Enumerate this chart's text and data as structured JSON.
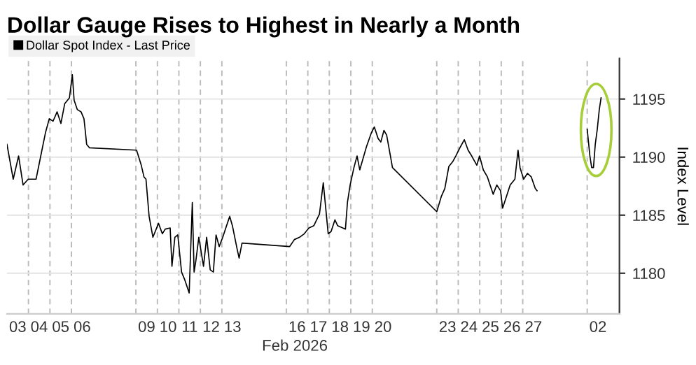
{
  "chart_data": {
    "type": "line",
    "title": "Dollar Gauge Rises to Highest in Nearly a Month",
    "xlabel": "Feb 2026",
    "ylabel": "Index Level",
    "xlim": [
      "2026-02-03T00:00",
      "2026-03-03T12:00"
    ],
    "ylim": [
      1176.5,
      1198.5
    ],
    "yticks": [
      1180,
      1185,
      1190,
      1195
    ],
    "xticks": [
      {
        "value": "2026-02-03T12:00",
        "label": "03"
      },
      {
        "value": "2026-02-04T12:00",
        "label": "04"
      },
      {
        "value": "2026-02-05T12:00",
        "label": "05"
      },
      {
        "value": "2026-02-06T12:00",
        "label": "06"
      },
      {
        "value": "2026-02-09T12:00",
        "label": "09"
      },
      {
        "value": "2026-02-10T12:00",
        "label": "10"
      },
      {
        "value": "2026-02-11T12:00",
        "label": "11"
      },
      {
        "value": "2026-02-12T12:00",
        "label": "12"
      },
      {
        "value": "2026-02-13T12:00",
        "label": "13"
      },
      {
        "value": "2026-02-16T12:00",
        "label": "16"
      },
      {
        "value": "2026-02-17T12:00",
        "label": "17"
      },
      {
        "value": "2026-02-18T12:00",
        "label": "18"
      },
      {
        "value": "2026-02-19T12:00",
        "label": "19"
      },
      {
        "value": "2026-02-20T12:00",
        "label": "20"
      },
      {
        "value": "2026-02-23T12:00",
        "label": "23"
      },
      {
        "value": "2026-02-24T12:00",
        "label": "24"
      },
      {
        "value": "2026-02-25T12:00",
        "label": "25"
      },
      {
        "value": "2026-02-26T12:00",
        "label": "26"
      },
      {
        "value": "2026-02-27T12:00",
        "label": "27"
      },
      {
        "value": "2026-03-02T12:00",
        "label": "02"
      },
      {
        "value": "2026-02-04T00:00",
        "label": null
      },
      {
        "value": "2026-02-05T00:00",
        "label": null
      },
      {
        "value": "2026-02-06T00:00",
        "label": null
      },
      {
        "value": "2026-02-09T00:00",
        "label": null
      },
      {
        "value": "2026-02-10T00:00",
        "label": null
      },
      {
        "value": "2026-02-11T00:00",
        "label": null
      },
      {
        "value": "2026-02-12T00:00",
        "label": null
      },
      {
        "value": "2026-02-13T00:00",
        "label": null
      },
      {
        "value": "2026-02-16T00:00",
        "label": null
      },
      {
        "value": "2026-02-17T00:00",
        "label": null
      },
      {
        "value": "2026-02-18T00:00",
        "label": null
      },
      {
        "value": "2026-02-19T00:00",
        "label": null
      },
      {
        "value": "2026-02-20T00:00",
        "label": null
      },
      {
        "value": "2026-02-23T00:00",
        "label": null
      },
      {
        "value": "2026-02-24T00:00",
        "label": null
      },
      {
        "value": "2026-02-25T00:00",
        "label": null
      },
      {
        "value": "2026-02-26T00:00",
        "label": null
      },
      {
        "value": "2026-02-27T00:00",
        "label": null
      },
      {
        "value": "2026-03-02T00:00",
        "label": null
      }
    ],
    "grid": true,
    "legend": "top left",
    "series": [
      {
        "name": "Dollar Spot Index - Last Price",
        "color": "#000000",
        "x": [
          "2026-02-03T00:00",
          "2026-02-03T07:00",
          "2026-02-03T13:00",
          "2026-02-03T18:00",
          "2026-02-03T23:45",
          "2026-02-04T08:30",
          "2026-02-04T13:45",
          "2026-02-04T19:00",
          "2026-02-04T23:15",
          "2026-02-05T03:30",
          "2026-02-05T08:00",
          "2026-02-05T12:15",
          "2026-02-05T16:30",
          "2026-02-05T21:45",
          "2026-02-06T01:00",
          "2026-02-06T03:00",
          "2026-02-06T06:30",
          "2026-02-06T10:45",
          "2026-02-06T14:00",
          "2026-02-06T15:00",
          "2026-02-06T17:00",
          "2026-02-06T20:15",
          "2026-02-09T00:45",
          "2026-02-09T06:00",
          "2026-02-09T09:00",
          "2026-02-09T11:15",
          "2026-02-09T14:45",
          "2026-02-09T19:00",
          "2026-02-10T01:15",
          "2026-02-10T05:30",
          "2026-02-10T08:45",
          "2026-02-10T14:15",
          "2026-02-10T16:15",
          "2026-02-10T19:30",
          "2026-02-10T22:45",
          "2026-02-11T03:00",
          "2026-02-11T06:15",
          "2026-02-11T11:30",
          "2026-02-11T15:00",
          "2026-02-11T17:00",
          "2026-02-11T19:00",
          "2026-02-11T22:15",
          "2026-02-12T03:30",
          "2026-02-12T07:00",
          "2026-02-12T11:00",
          "2026-02-12T14:30",
          "2026-02-12T17:30",
          "2026-02-12T21:00",
          "2026-02-13T01:00",
          "2026-02-13T05:15",
          "2026-02-13T08:45",
          "2026-02-13T11:45",
          "2026-02-13T17:00",
          "2026-02-13T19:15",
          "2026-02-13T22:30",
          "2026-02-16T03:45",
          "2026-02-16T09:00",
          "2026-02-16T14:45",
          "2026-02-16T20:00",
          "2026-02-17T01:15",
          "2026-02-17T06:45",
          "2026-02-17T13:00",
          "2026-02-17T17:15",
          "2026-02-17T22:45",
          "2026-02-18T02:00",
          "2026-02-18T06:15",
          "2026-02-18T09:15",
          "2026-02-18T15:00",
          "2026-02-18T18:00",
          "2026-02-18T20:15",
          "2026-02-18T23:15",
          "2026-02-19T03:30",
          "2026-02-19T07:00",
          "2026-02-19T10:00",
          "2026-02-19T14:30",
          "2026-02-19T17:30",
          "2026-02-19T23:00",
          "2026-02-20T02:15",
          "2026-02-20T06:30",
          "2026-02-20T09:30",
          "2026-02-20T13:00",
          "2026-02-20T16:00",
          "2026-02-20T20:15",
          "2026-02-20T22:30",
          "2026-02-23T00:00",
          "2026-02-23T05:00",
          "2026-02-23T09:00",
          "2026-02-23T13:30",
          "2026-02-23T17:45",
          "2026-02-23T21:15",
          "2026-02-24T02:30",
          "2026-02-24T06:45",
          "2026-02-24T11:00",
          "2026-02-24T15:00",
          "2026-02-24T20:45",
          "2026-02-24T23:45",
          "2026-02-25T04:00",
          "2026-02-25T08:30",
          "2026-02-25T11:30",
          "2026-02-25T15:00",
          "2026-02-25T19:00",
          "2026-02-25T23:15",
          "2026-02-26T01:30",
          "2026-02-26T05:45",
          "2026-02-26T10:00",
          "2026-02-26T15:15",
          "2026-02-26T18:45",
          "2026-02-26T21:00",
          "2026-02-27T01:00",
          "2026-02-27T05:15",
          "2026-02-27T09:30",
          "2026-02-27T14:00",
          "2026-02-27T16:00",
          "2026-02-27T19:15",
          "2026-03-02T00:00",
          "2026-03-02T03:00",
          "2026-03-02T05:00",
          "2026-03-02T07:00",
          "2026-03-02T09:00",
          "2026-03-02T11:15",
          "2026-03-02T13:30",
          "2026-03-02T15:30"
        ],
        "values": [
          1191.1,
          1188.1,
          1190.1,
          1187.6,
          1188.1,
          1188.1,
          1190.1,
          1192.1,
          1193.3,
          1193.1,
          1193.9,
          1192.9,
          1194.6,
          1195.1,
          1197.1,
          1194.9,
          1194.1,
          1193.9,
          1193.3,
          1192.6,
          1191.1,
          1190.8,
          1190.6,
          1189.3,
          1188.3,
          1188.1,
          1184.9,
          1183.1,
          1184.3,
          1183.4,
          1183.8,
          1183.9,
          1180.6,
          1183.1,
          1183.3,
          1180.1,
          1179.5,
          1178.3,
          1186.1,
          1180.1,
          1181.1,
          1183.1,
          1180.6,
          1183.1,
          1180.3,
          1180.1,
          1183.3,
          1182.3,
          1183.1,
          1184.1,
          1184.9,
          1184.1,
          1182.1,
          1181.3,
          1182.6,
          1182.3,
          1182.9,
          1183.1,
          1183.4,
          1183.9,
          1184.1,
          1185.1,
          1187.8,
          1183.4,
          1183.6,
          1184.6,
          1184.1,
          1183.9,
          1183.8,
          1186.1,
          1187.6,
          1189.1,
          1190.1,
          1188.9,
          1190.1,
          1190.9,
          1192.1,
          1192.6,
          1191.6,
          1191.3,
          1192.3,
          1191.9,
          1190.1,
          1189.1,
          1185.3,
          1186.6,
          1187.3,
          1189.2,
          1189.6,
          1190.1,
          1190.9,
          1191.5,
          1190.6,
          1190.1,
          1189.3,
          1190.1,
          1188.9,
          1188.3,
          1187.6,
          1186.8,
          1187.6,
          1187.1,
          1185.6,
          1186.6,
          1187.6,
          1188.1,
          1190.6,
          1189.1,
          1188.1,
          1188.6,
          1188.3,
          1187.3,
          1187.1,
          null,
          1192.4,
          1190.1,
          1189.1,
          1189.1,
          1191.1,
          1192.4,
          1194.1,
          1195.1
        ]
      }
    ]
  }
}
